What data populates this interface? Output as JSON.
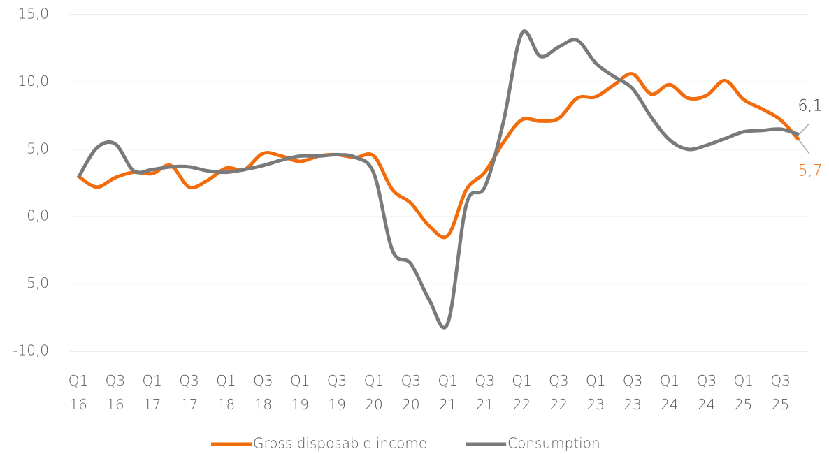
{
  "chart_data": {
    "type": "line",
    "categories": [
      "Q1\n16",
      null,
      "Q3\n16",
      null,
      "Q1\n17",
      null,
      "Q3\n17",
      null,
      "Q1\n18",
      null,
      "Q3\n18",
      null,
      "Q1\n19",
      null,
      "Q3\n19",
      null,
      "Q1\n20",
      null,
      "Q3\n20",
      null,
      "Q1\n21",
      null,
      "Q3\n21",
      null,
      "Q1\n22",
      null,
      "Q3\n22",
      null,
      "Q1\n23",
      null,
      "Q3\n23",
      null,
      "Q1\n24",
      null,
      "Q3\n24",
      null,
      "Q1\n25",
      null,
      "Q3\n25",
      null
    ],
    "series": [
      {
        "name": "Gross disposable income",
        "color": "#f36c0c",
        "values": [
          3.0,
          2.2,
          2.9,
          3.3,
          3.2,
          3.8,
          2.2,
          2.7,
          3.6,
          3.5,
          4.7,
          4.5,
          4.1,
          4.5,
          4.6,
          4.4,
          4.5,
          2.0,
          1.0,
          -0.7,
          -1.4,
          2.0,
          3.3,
          5.5,
          7.2,
          7.1,
          7.3,
          8.8,
          8.9,
          9.8,
          10.6,
          9.1,
          9.8,
          8.8,
          9.0,
          10.1,
          8.7,
          8.0,
          7.2,
          5.7
        ],
        "value_labels": [
          null,
          null,
          null,
          null,
          null,
          null,
          null,
          null,
          null,
          null,
          null,
          null,
          null,
          null,
          null,
          null,
          null,
          null,
          null,
          null,
          null,
          null,
          null,
          null,
          null,
          null,
          null,
          null,
          null,
          null,
          null,
          null,
          null,
          null,
          null,
          null,
          null,
          null,
          null,
          "5,7"
        ]
      },
      {
        "name": "Consumption",
        "color": "#7a7a7a",
        "values": [
          2.9,
          5.1,
          5.4,
          3.4,
          3.5,
          3.7,
          3.7,
          3.4,
          3.3,
          3.5,
          3.8,
          4.2,
          4.5,
          4.5,
          4.6,
          4.4,
          3.2,
          -2.5,
          -3.5,
          -6.2,
          -7.9,
          0.9,
          2.2,
          7.0,
          13.6,
          11.9,
          12.6,
          13.1,
          11.4,
          10.4,
          9.5,
          7.4,
          5.7,
          5.0,
          5.3,
          5.8,
          6.3,
          6.4,
          6.5,
          6.1
        ],
        "value_labels": [
          null,
          null,
          null,
          null,
          null,
          null,
          null,
          null,
          null,
          null,
          null,
          null,
          null,
          null,
          null,
          null,
          null,
          null,
          null,
          null,
          null,
          null,
          null,
          null,
          null,
          null,
          null,
          null,
          null,
          null,
          null,
          null,
          null,
          null,
          null,
          null,
          null,
          null,
          null,
          "6,1"
        ]
      }
    ],
    "ylim": [
      -10,
      15
    ],
    "yticks": [
      {
        "value": -10,
        "label": "-10,0"
      },
      {
        "value": -5,
        "label": "-5,0"
      },
      {
        "value": 0,
        "label": "0,0"
      },
      {
        "value": 5,
        "label": "5,0"
      },
      {
        "value": 10,
        "label": "10,0"
      },
      {
        "value": 15,
        "label": "15,0"
      }
    ],
    "grid": true,
    "legend": "bottom"
  }
}
